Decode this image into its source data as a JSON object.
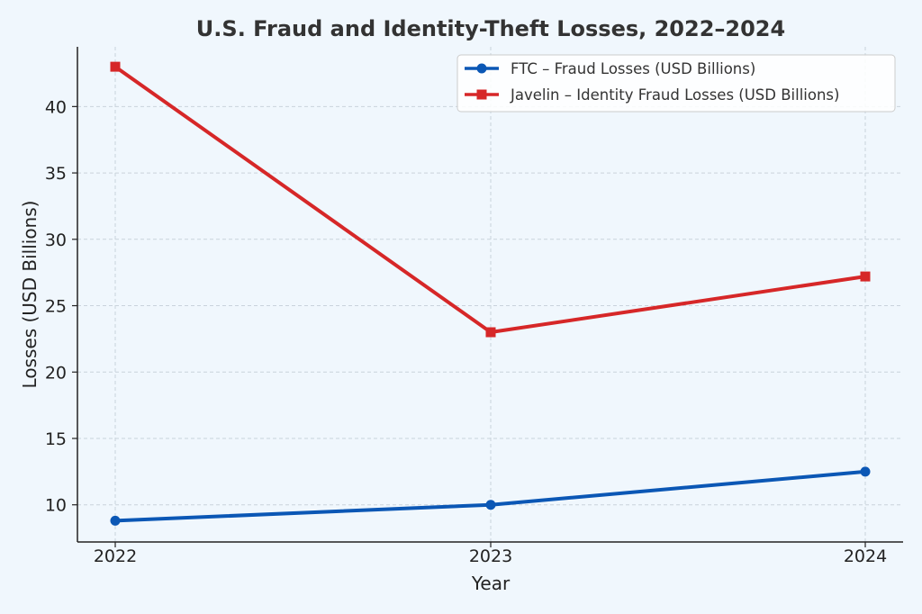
{
  "chart_data": {
    "type": "line",
    "title": "U.S. Fraud and Identity-Theft Losses, 2022–2024",
    "xlabel": "Year",
    "ylabel": "Losses (USD Billions)",
    "x": [
      "2022",
      "2023",
      "2024"
    ],
    "ylim": [
      7.2,
      44.5
    ],
    "yticks": [
      10,
      15,
      20,
      25,
      30,
      35,
      40
    ],
    "grid": true,
    "legend_position": "top-right",
    "series": [
      {
        "name": "FTC – Fraud Losses (USD Billions)",
        "values": [
          8.8,
          10.0,
          12.5
        ],
        "color": "#0b57b5",
        "marker": "circle"
      },
      {
        "name": "Javelin – Identity Fraud Losses (USD Billions)",
        "values": [
          43.0,
          23.0,
          27.2
        ],
        "color": "#d62728",
        "marker": "square"
      }
    ]
  }
}
